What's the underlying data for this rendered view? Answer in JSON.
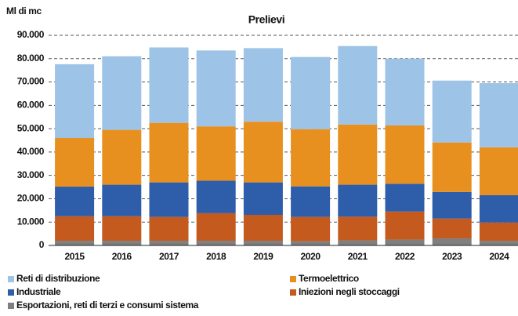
{
  "chart_data": {
    "type": "stacked-bar",
    "title": "Prelievi",
    "y_label": "Ml di mc",
    "categories": [
      "2015",
      "2016",
      "2017",
      "2018",
      "2019",
      "2020",
      "2021",
      "2022",
      "2023",
      "2024"
    ],
    "series": [
      {
        "name": "Esportazioni, reti di terzi e consumi sistema",
        "color": "#7f7f7f",
        "values": [
          2000,
          2000,
          2000,
          2000,
          2000,
          1800,
          2200,
          2500,
          3000,
          2000
        ]
      },
      {
        "name": "Iniezioni negli stoccaggi",
        "color": "#c55a1e",
        "values": [
          10500,
          10500,
          10200,
          11800,
          11100,
          10400,
          10100,
          12000,
          8500,
          7800
        ]
      },
      {
        "name": "Industriale",
        "color": "#2e5daa",
        "values": [
          12700,
          13500,
          14800,
          13900,
          13900,
          13100,
          13700,
          11900,
          11400,
          11700
        ]
      },
      {
        "name": "Termoelettrico",
        "color": "#e8901f",
        "values": [
          20800,
          23500,
          25500,
          23300,
          26000,
          24500,
          25800,
          25000,
          21200,
          20500
        ]
      },
      {
        "name": "Reti di distribuzione",
        "color": "#9dc3e6",
        "values": [
          31600,
          31500,
          32300,
          32500,
          31500,
          30900,
          33600,
          28600,
          26500,
          27500
        ]
      }
    ],
    "ylim": [
      0,
      90000
    ],
    "yticks": [
      0,
      {
        "value": 10000,
        "label": "10.000"
      },
      {
        "value": 20000,
        "label": "20.000"
      },
      {
        "value": 30000,
        "label": "30.000"
      },
      {
        "value": 40000,
        "label": "40.000"
      },
      {
        "value": 50000,
        "label": "50.000"
      },
      {
        "value": 60000,
        "label": "60.000"
      },
      {
        "value": 70000,
        "label": "70.000"
      },
      {
        "value": 80000,
        "label": "80.000"
      },
      {
        "value": 90000,
        "label": "90.000"
      }
    ],
    "grid": true
  }
}
